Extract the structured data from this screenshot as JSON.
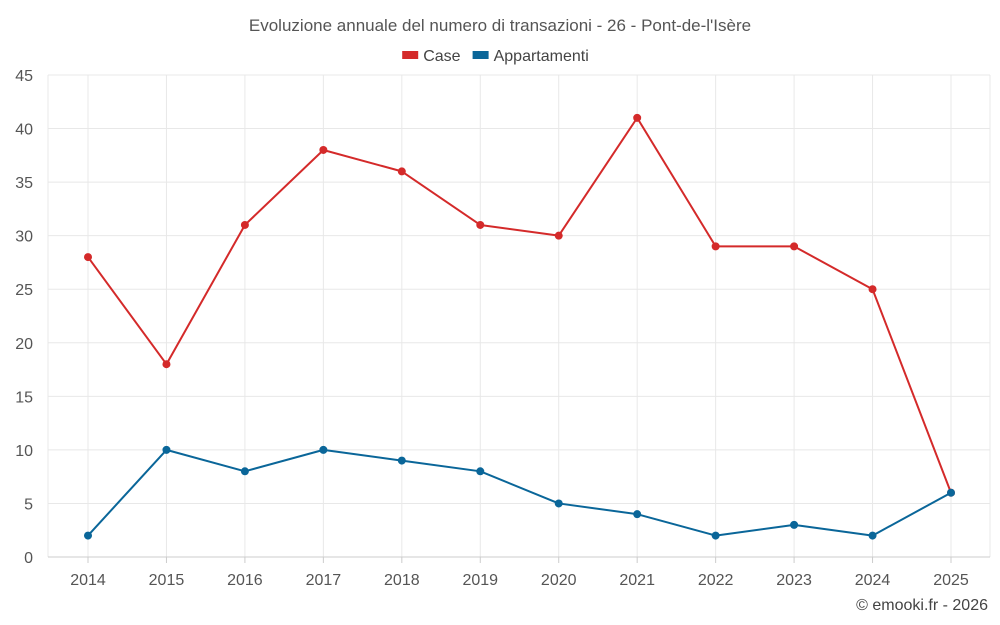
{
  "chart_data": {
    "type": "line",
    "title": "Evoluzione annuale del numero di transazioni - 26 - Pont-de-l'Isère",
    "categories": [
      "2014",
      "2015",
      "2016",
      "2017",
      "2018",
      "2019",
      "2020",
      "2021",
      "2022",
      "2023",
      "2024",
      "2025"
    ],
    "series": [
      {
        "name": "Case",
        "color": "#d42a2a",
        "values": [
          28,
          18,
          31,
          38,
          36,
          31,
          30,
          41,
          29,
          29,
          25,
          6
        ]
      },
      {
        "name": "Appartamenti",
        "color": "#0a6699",
        "values": [
          2,
          10,
          8,
          10,
          9,
          8,
          5,
          4,
          2,
          3,
          2,
          6
        ]
      }
    ],
    "ylim": [
      0,
      45
    ],
    "yticks": [
      0,
      5,
      10,
      15,
      20,
      25,
      30,
      35,
      40,
      45
    ],
    "xlabel": "",
    "ylabel": "",
    "grid": true,
    "legend": "top-center"
  },
  "credit": "© emooki.fr - 2026"
}
